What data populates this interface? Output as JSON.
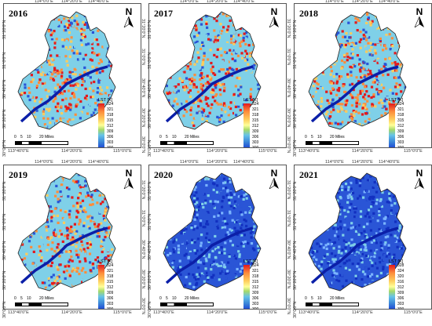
{
  "panels": [
    {
      "year": "2016",
      "theme": "hot"
    },
    {
      "year": "2017",
      "theme": "hot"
    },
    {
      "year": "2018",
      "theme": "hot"
    },
    {
      "year": "2019",
      "theme": "hotter"
    },
    {
      "year": "2020",
      "theme": "cool"
    },
    {
      "year": "2021",
      "theme": "cool"
    }
  ],
  "north_label": "N",
  "legend": {
    "title": "LST [K]",
    "ticks_a": [
      "324",
      "321",
      "318",
      "315",
      "312",
      "309",
      "306",
      "303",
      "300"
    ],
    "ticks_b": [
      "328",
      "324",
      "320",
      "316",
      "312",
      "309",
      "306",
      "303",
      "300"
    ]
  },
  "scale": {
    "labels": [
      "0",
      "5",
      "10",
      "20 Miles"
    ]
  },
  "lon_labels": [
    "113°40'0\"E",
    "114°0'0\"E",
    "114°20'0\"E",
    "114°40'0\"E",
    "115°0'0\"E"
  ],
  "lat_labels": [
    "31°20'0\"N",
    "31°0'0\"N",
    "30°40'0\"N",
    "30°20'0\"N",
    "30°0'0\"N"
  ],
  "colors": {
    "river": "#0b1fa8",
    "boundary": "#222222",
    "hot": "#e31a1c",
    "warm": "#fecc5c",
    "mild": "#7fd0e8",
    "cool": "#2a55d6",
    "cold": "#1230c0"
  }
}
